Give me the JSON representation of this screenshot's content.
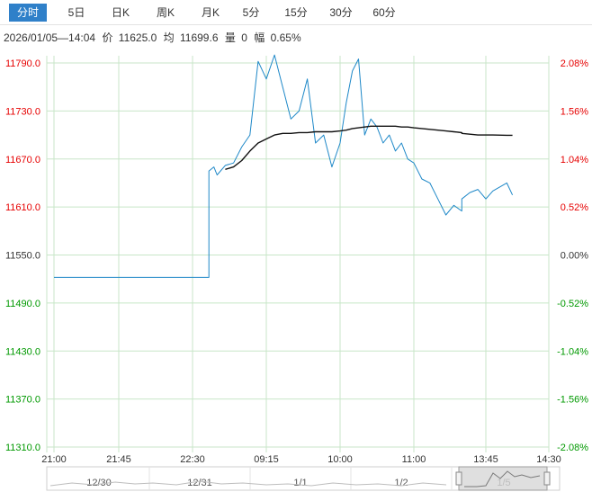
{
  "tabs": [
    {
      "label": "分时",
      "active": true
    },
    {
      "label": "5日",
      "active": false
    },
    {
      "label": "日K",
      "active": false
    },
    {
      "label": "周K",
      "active": false
    },
    {
      "label": "月K",
      "active": false
    },
    {
      "label": "5分",
      "active": false
    },
    {
      "label": "15分",
      "active": false
    },
    {
      "label": "30分",
      "active": false
    },
    {
      "label": "60分",
      "active": false
    }
  ],
  "info": {
    "datetime": "2026/01/05—14:04",
    "price_label": "价",
    "price": "11625.0",
    "avg_label": "均",
    "avg": "11699.6",
    "volume_label": "量",
    "volume": "0",
    "change_label": "幅",
    "change": "0.65%"
  },
  "colors": {
    "up": "#e60000",
    "down": "#009900",
    "price_line": "#1e88c8",
    "avg_line": "#111111",
    "grid": "#c8e6c8",
    "tab_active": "#2f80c9"
  },
  "chart_data": {
    "type": "line",
    "ylim": [
      11310,
      11790
    ],
    "prev_close": 11550,
    "y_ticks": [
      "11790.0",
      "11730.0",
      "11670.0",
      "11610.0",
      "11550.0",
      "11490.0",
      "11430.0",
      "11370.0",
      "11310.0"
    ],
    "pct_ticks": [
      "2.08%",
      "1.56%",
      "1.04%",
      "0.52%",
      "0.00%",
      "-0.52%",
      "-1.04%",
      "-1.56%",
      "-2.08%"
    ],
    "x_ticks": [
      "21:00",
      "21:45",
      "22:30",
      "09:15",
      "10:00",
      "11:00",
      "13:45",
      "14:30"
    ],
    "x": [
      "21:00",
      "22:40",
      "22:40",
      "22:43",
      "22:45",
      "22:50",
      "22:55",
      "23:00",
      "09:05",
      "09:10",
      "09:15",
      "09:20",
      "09:25",
      "09:30",
      "09:35",
      "09:40",
      "09:45",
      "09:50",
      "09:55",
      "10:00",
      "10:05",
      "10:10",
      "10:15",
      "10:20",
      "10:25",
      "10:30",
      "10:35",
      "10:40",
      "10:45",
      "10:50",
      "10:55",
      "11:00",
      "11:05",
      "11:10",
      "11:15",
      "11:20",
      "11:25",
      "11:30",
      "13:30",
      "13:35",
      "13:40",
      "13:45",
      "13:50",
      "14:00",
      "14:04"
    ],
    "series": [
      {
        "values": [
          11522,
          11522,
          11655,
          11660,
          11650,
          11662,
          11665,
          11685,
          11700,
          11792,
          11770,
          11800,
          11760,
          11720,
          11730,
          11770,
          11690,
          11700,
          11660,
          11690,
          11740,
          11780,
          11795,
          11700,
          11720,
          11710,
          11690,
          11700,
          11680,
          11690,
          11670,
          11665,
          11645,
          11640,
          11620,
          11600,
          11612,
          11605,
          11620,
          11628,
          11632,
          11620,
          11630,
          11640,
          11625
        ]
      },
      {
        "values": [
          null,
          null,
          null,
          null,
          null,
          11657,
          11660,
          11668,
          11680,
          11690,
          11695,
          11700,
          11702,
          11702,
          11703,
          11703,
          11704,
          11704,
          11704,
          11705,
          11706,
          11708,
          11709,
          11710,
          11711,
          11711,
          11711,
          11711,
          11711,
          11710,
          11710,
          11709,
          11708,
          11707,
          11706,
          11705,
          11704,
          11703,
          11702,
          11701,
          11700,
          11700,
          11700,
          11699.6,
          11699.6
        ]
      }
    ]
  },
  "navigator": {
    "labels": [
      "12/30",
      "12/31",
      "1/1",
      "1/2",
      "1/5"
    ]
  }
}
